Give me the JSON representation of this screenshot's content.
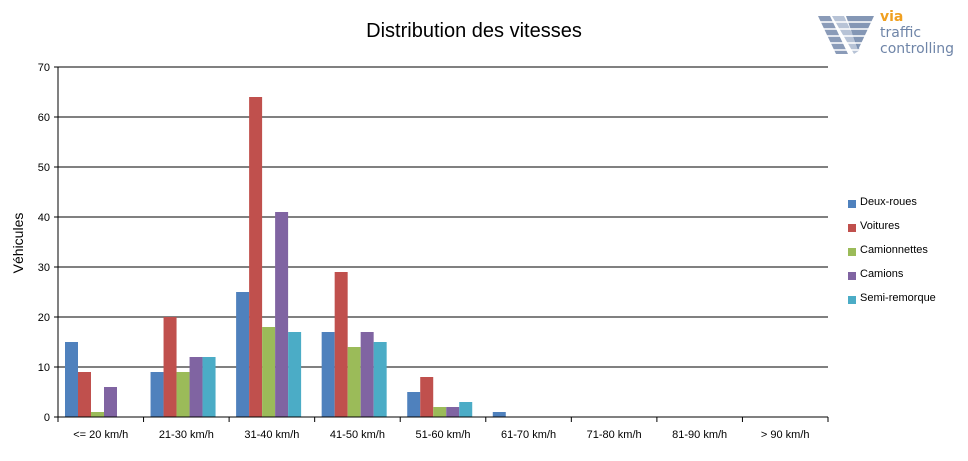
{
  "chart_data": {
    "type": "bar",
    "title": "Distribution des vitesses",
    "ylabel": "Véhicules",
    "xlabel": "",
    "ylim": [
      0,
      70
    ],
    "yticks": [
      0,
      10,
      20,
      30,
      40,
      50,
      60,
      70
    ],
    "grid": true,
    "legend_position": "right",
    "categories": [
      "<= 20 km/h",
      "21-30 km/h",
      "31-40 km/h",
      "41-50 km/h",
      "51-60 km/h",
      "61-70 km/h",
      "71-80 km/h",
      "81-90 km/h",
      "> 90 km/h"
    ],
    "series": [
      {
        "name": "Deux-roues",
        "color": "#4f81bd",
        "values": [
          15,
          9,
          25,
          17,
          5,
          1,
          0,
          0,
          0
        ]
      },
      {
        "name": "Voitures",
        "color": "#c0504d",
        "values": [
          9,
          20,
          64,
          29,
          8,
          0,
          0,
          0,
          0
        ]
      },
      {
        "name": "Camionnettes",
        "color": "#9bbb59",
        "values": [
          1,
          9,
          18,
          14,
          2,
          0,
          0,
          0,
          0
        ]
      },
      {
        "name": "Camions",
        "color": "#8064a2",
        "values": [
          6,
          12,
          41,
          17,
          2,
          0,
          0,
          0,
          0
        ]
      },
      {
        "name": "Semi-remorque",
        "color": "#4bacc6",
        "values": [
          0,
          12,
          17,
          15,
          3,
          0,
          0,
          0,
          0
        ]
      }
    ]
  },
  "logo": {
    "brand": "via",
    "line1": "traffic",
    "line2": "controlling",
    "accent_color": "#f0a020",
    "text_color": "#6f85a8"
  }
}
